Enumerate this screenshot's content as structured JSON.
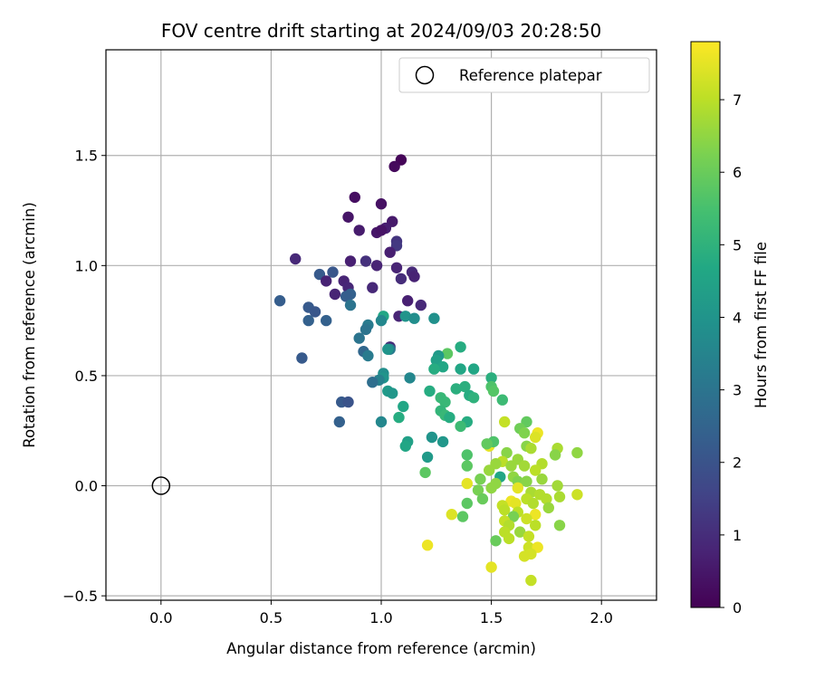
{
  "chart_data": {
    "type": "scatter",
    "title": "FOV centre drift starting at 2024/09/03 20:28:50",
    "xlabel": "Angular distance from reference (arcmin)",
    "ylabel": "Rotation from reference (arcmin)",
    "xlim": [
      -0.25,
      2.25
    ],
    "ylim": [
      -0.52,
      1.98
    ],
    "xticks": [
      0.0,
      0.5,
      1.0,
      1.5,
      2.0
    ],
    "xtick_labels": [
      "0.0",
      "0.5",
      "1.0",
      "1.5",
      "2.0"
    ],
    "yticks": [
      -0.5,
      0.0,
      0.5,
      1.0,
      1.5
    ],
    "ytick_labels": [
      "−0.5",
      "0.0",
      "0.5",
      "1.0",
      "1.5"
    ],
    "grid": true,
    "legend_position": "top-right",
    "legend": [
      "Reference platepar"
    ],
    "reference_point": {
      "x": 0.0,
      "y": 0.0
    },
    "colorbar": {
      "label": "Hours from first FF file",
      "range": [
        0,
        7.8
      ],
      "ticks": [
        0,
        1,
        2,
        3,
        4,
        5,
        6,
        7
      ],
      "tick_labels": [
        "0",
        "1",
        "2",
        "3",
        "4",
        "5",
        "6",
        "7"
      ],
      "colormap": "viridis"
    },
    "points": [
      [
        1.09,
        1.48,
        0.1
      ],
      [
        1.06,
        1.45,
        0.2
      ],
      [
        0.88,
        1.31,
        0.3
      ],
      [
        1.0,
        1.28,
        0.35
      ],
      [
        0.85,
        1.22,
        0.45
      ],
      [
        1.05,
        1.2,
        0.55
      ],
      [
        0.9,
        1.16,
        0.6
      ],
      [
        1.02,
        1.17,
        0.65
      ],
      [
        0.98,
        1.15,
        0.5
      ],
      [
        1.0,
        1.16,
        0.4
      ],
      [
        1.07,
        1.11,
        1.2
      ],
      [
        1.07,
        1.09,
        1.3
      ],
      [
        1.04,
        1.06,
        0.7
      ],
      [
        0.61,
        1.03,
        0.9
      ],
      [
        0.86,
        1.02,
        0.7
      ],
      [
        0.93,
        1.02,
        1.1
      ],
      [
        0.98,
        1.0,
        0.8
      ],
      [
        1.07,
        0.99,
        0.8
      ],
      [
        1.14,
        0.97,
        0.9
      ],
      [
        1.15,
        0.95,
        0.75
      ],
      [
        1.09,
        0.94,
        1.0
      ],
      [
        0.72,
        0.96,
        2.2
      ],
      [
        0.78,
        0.97,
        2.1
      ],
      [
        0.83,
        0.93,
        0.8
      ],
      [
        0.75,
        0.93,
        0.75
      ],
      [
        0.85,
        0.9,
        0.85
      ],
      [
        0.96,
        0.9,
        0.9
      ],
      [
        0.86,
        0.87,
        2.4
      ],
      [
        0.79,
        0.87,
        0.8
      ],
      [
        0.84,
        0.86,
        2.3
      ],
      [
        0.54,
        0.84,
        2.3
      ],
      [
        1.12,
        0.84,
        0.7
      ],
      [
        1.18,
        0.82,
        0.9
      ],
      [
        0.86,
        0.82,
        3.0
      ],
      [
        0.67,
        0.81,
        2.2
      ],
      [
        0.7,
        0.79,
        2.1
      ],
      [
        1.08,
        0.77,
        0.8
      ],
      [
        1.11,
        0.77,
        4.0
      ],
      [
        1.01,
        0.77,
        4.6
      ],
      [
        1.0,
        0.75,
        3.6
      ],
      [
        1.15,
        0.76,
        3.8
      ],
      [
        1.24,
        0.76,
        3.9
      ],
      [
        0.67,
        0.75,
        2.4
      ],
      [
        0.75,
        0.75,
        2.4
      ],
      [
        0.94,
        0.73,
        3.2
      ],
      [
        0.93,
        0.71,
        3.0
      ],
      [
        0.9,
        0.67,
        3.0
      ],
      [
        1.04,
        0.63,
        1.0
      ],
      [
        1.04,
        0.62,
        3.2
      ],
      [
        1.03,
        0.62,
        4.0
      ],
      [
        0.92,
        0.61,
        2.6
      ],
      [
        0.94,
        0.59,
        3.2
      ],
      [
        0.64,
        0.58,
        2.2
      ],
      [
        1.3,
        0.6,
        5.8
      ],
      [
        1.36,
        0.63,
        4.8
      ],
      [
        1.26,
        0.59,
        4.2
      ],
      [
        1.25,
        0.57,
        4.4
      ],
      [
        1.28,
        0.54,
        4.6
      ],
      [
        1.24,
        0.53,
        4.8
      ],
      [
        1.36,
        0.53,
        4.6
      ],
      [
        1.42,
        0.53,
        4.6
      ],
      [
        1.5,
        0.49,
        4.9
      ],
      [
        1.13,
        0.49,
        3.6
      ],
      [
        1.01,
        0.51,
        3.8
      ],
      [
        1.01,
        0.49,
        4.0
      ],
      [
        0.99,
        0.48,
        3.4
      ],
      [
        0.96,
        0.47,
        2.8
      ],
      [
        1.5,
        0.45,
        5.6
      ],
      [
        1.38,
        0.45,
        4.9
      ],
      [
        1.34,
        0.44,
        4.9
      ],
      [
        1.22,
        0.43,
        4.8
      ],
      [
        1.51,
        0.43,
        5.7
      ],
      [
        1.03,
        0.43,
        4.2
      ],
      [
        1.05,
        0.42,
        4.1
      ],
      [
        1.4,
        0.41,
        4.8
      ],
      [
        1.42,
        0.4,
        5.0
      ],
      [
        1.27,
        0.4,
        5.2
      ],
      [
        1.55,
        0.39,
        5.3
      ],
      [
        0.82,
        0.38,
        2.2
      ],
      [
        0.85,
        0.38,
        2.0
      ],
      [
        1.29,
        0.38,
        5.2
      ],
      [
        1.1,
        0.36,
        4.6
      ],
      [
        1.27,
        0.34,
        5.1
      ],
      [
        1.29,
        0.32,
        5.2
      ],
      [
        1.31,
        0.31,
        4.8
      ],
      [
        1.08,
        0.31,
        4.8
      ],
      [
        1.66,
        0.29,
        5.9
      ],
      [
        1.56,
        0.29,
        7.1
      ],
      [
        1.39,
        0.29,
        4.8
      ],
      [
        0.81,
        0.29,
        2.4
      ],
      [
        1.0,
        0.29,
        3.6
      ],
      [
        1.36,
        0.27,
        5.3
      ],
      [
        1.63,
        0.26,
        6.1
      ],
      [
        1.65,
        0.24,
        6.3
      ],
      [
        1.71,
        0.24,
        7.6
      ],
      [
        1.7,
        0.22,
        7.4
      ],
      [
        1.23,
        0.22,
        4.0
      ],
      [
        1.12,
        0.2,
        4.4
      ],
      [
        1.28,
        0.2,
        4.1
      ],
      [
        1.49,
        0.18,
        7.5
      ],
      [
        1.66,
        0.18,
        6.4
      ],
      [
        1.68,
        0.17,
        6.8
      ],
      [
        1.8,
        0.17,
        6.8
      ],
      [
        1.11,
        0.18,
        4.6
      ],
      [
        1.51,
        0.2,
        5.6
      ],
      [
        1.48,
        0.19,
        5.9
      ],
      [
        1.57,
        0.15,
        6.4
      ],
      [
        1.89,
        0.15,
        6.5
      ],
      [
        1.79,
        0.14,
        6.4
      ],
      [
        1.39,
        0.14,
        5.6
      ],
      [
        1.62,
        0.12,
        6.6
      ],
      [
        1.55,
        0.11,
        7.0
      ],
      [
        1.21,
        0.13,
        4.2
      ],
      [
        1.52,
        0.1,
        6.6
      ],
      [
        1.73,
        0.1,
        6.9
      ],
      [
        1.59,
        0.09,
        6.6
      ],
      [
        1.65,
        0.09,
        6.7
      ],
      [
        1.39,
        0.09,
        5.8
      ],
      [
        1.7,
        0.07,
        7.0
      ],
      [
        1.49,
        0.07,
        6.6
      ],
      [
        1.2,
        0.06,
        5.8
      ],
      [
        1.6,
        0.04,
        6.5
      ],
      [
        1.54,
        0.04,
        4.6
      ],
      [
        1.73,
        0.03,
        6.6
      ],
      [
        1.45,
        0.03,
        6.2
      ],
      [
        1.39,
        0.01,
        7.5
      ],
      [
        1.62,
        0.02,
        6.3
      ],
      [
        1.66,
        0.02,
        6.4
      ],
      [
        1.8,
        0.0,
        6.7
      ],
      [
        1.62,
        -0.01,
        7.5
      ],
      [
        1.5,
        -0.01,
        6.5
      ],
      [
        1.52,
        0.01,
        6.5
      ],
      [
        1.44,
        -0.02,
        6.2
      ],
      [
        1.68,
        -0.03,
        6.8
      ],
      [
        1.72,
        -0.04,
        6.9
      ],
      [
        1.89,
        -0.04,
        7.2
      ],
      [
        1.81,
        -0.05,
        6.8
      ],
      [
        1.46,
        -0.06,
        6.0
      ],
      [
        1.66,
        -0.06,
        7.0
      ],
      [
        1.75,
        -0.06,
        6.9
      ],
      [
        1.59,
        -0.07,
        7.6
      ],
      [
        1.55,
        -0.09,
        7.1
      ],
      [
        1.61,
        -0.08,
        7.5
      ],
      [
        1.39,
        -0.08,
        5.8
      ],
      [
        1.69,
        -0.08,
        6.9
      ],
      [
        1.76,
        -0.1,
        6.6
      ],
      [
        1.56,
        -0.11,
        7.0
      ],
      [
        1.62,
        -0.12,
        7.0
      ],
      [
        1.7,
        -0.13,
        7.6
      ],
      [
        1.32,
        -0.13,
        7.4
      ],
      [
        1.37,
        -0.14,
        5.8
      ],
      [
        1.6,
        -0.14,
        6.2
      ],
      [
        1.66,
        -0.15,
        7.2
      ],
      [
        1.56,
        -0.16,
        7.1
      ],
      [
        1.58,
        -0.18,
        6.9
      ],
      [
        1.7,
        -0.18,
        7.0
      ],
      [
        1.81,
        -0.18,
        6.4
      ],
      [
        1.56,
        -0.21,
        7.0
      ],
      [
        1.63,
        -0.21,
        6.6
      ],
      [
        1.67,
        -0.23,
        7.1
      ],
      [
        1.52,
        -0.25,
        6.0
      ],
      [
        1.58,
        -0.24,
        7.0
      ],
      [
        1.21,
        -0.27,
        7.6
      ],
      [
        1.67,
        -0.28,
        7.2
      ],
      [
        1.71,
        -0.28,
        7.6
      ],
      [
        1.65,
        -0.32,
        7.3
      ],
      [
        1.68,
        -0.31,
        7.3
      ],
      [
        1.5,
        -0.37,
        7.5
      ],
      [
        1.68,
        -0.43,
        7.1
      ]
    ]
  }
}
